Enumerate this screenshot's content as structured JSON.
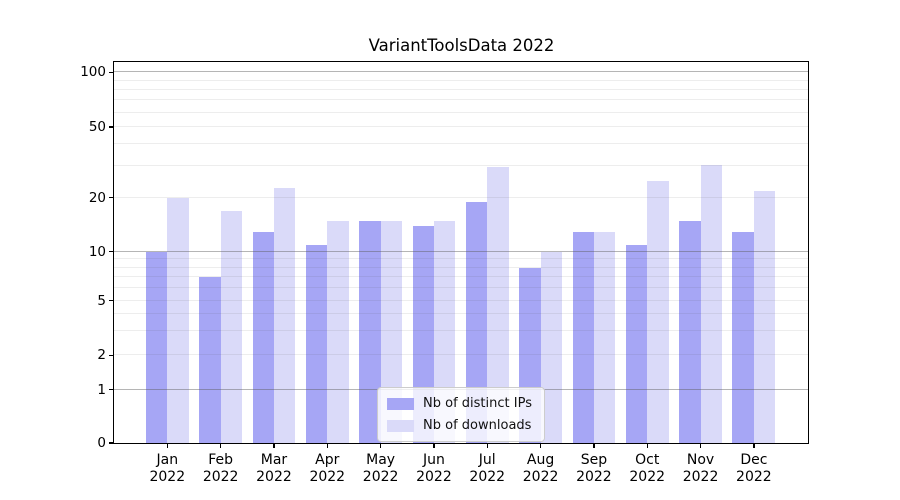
{
  "title": "VariantToolsData 2022",
  "colors": {
    "distinct_ips_bar": "#a6a6f5",
    "downloads_bar": "#dadaf9",
    "major_gridline": "#b0b0b0",
    "minor_gridline": "#ededed",
    "axis_spine": "#000000",
    "background": "#ffffff"
  },
  "legend": {
    "entries": [
      {
        "label": "Nb of distinct IPs",
        "color": "#a6a6f5"
      },
      {
        "label": "Nb of downloads",
        "color": "#dadaf9"
      }
    ]
  },
  "chart_data": {
    "type": "bar",
    "title": "VariantToolsData 2022",
    "xlabel": "",
    "ylabel": "",
    "categories": [
      "Jan 2022",
      "Feb 2022",
      "Mar 2022",
      "Apr 2022",
      "May 2022",
      "Jun 2022",
      "Jul 2022",
      "Aug 2022",
      "Sep 2022",
      "Oct 2022",
      "Nov 2022",
      "Dec 2022"
    ],
    "x_tick_line1": [
      "Jan",
      "Feb",
      "Mar",
      "Apr",
      "May",
      "Jun",
      "Jul",
      "Aug",
      "Sep",
      "Oct",
      "Nov",
      "Dec"
    ],
    "x_tick_line2": [
      "2022",
      "2022",
      "2022",
      "2022",
      "2022",
      "2022",
      "2022",
      "2022",
      "2022",
      "2022",
      "2022",
      "2022"
    ],
    "series": [
      {
        "name": "Nb of distinct IPs",
        "color": "#a6a6f5",
        "values": [
          10,
          7,
          13,
          11,
          15,
          14,
          19,
          8,
          13,
          11,
          15,
          13
        ]
      },
      {
        "name": "Nb of downloads",
        "color": "#dadaf9",
        "values": [
          20,
          17,
          23,
          15,
          15,
          15,
          30,
          10,
          13,
          25,
          31,
          22
        ]
      }
    ],
    "y_axis": {
      "scale": "symlog-like: linear 0-1, logarithmic above 1",
      "ticks": [
        0,
        1,
        2,
        5,
        10,
        20,
        50,
        100
      ],
      "major_gridlines": [
        1,
        10,
        100
      ],
      "minor_gridlines": [
        2,
        3,
        4,
        5,
        6,
        7,
        8,
        9,
        20,
        30,
        40,
        50,
        60,
        70,
        80,
        90
      ],
      "scale_anchors": [
        [
          0,
          0
        ],
        [
          1,
          0.1404
        ],
        [
          2,
          0.23
        ],
        [
          5,
          0.3738
        ],
        [
          10,
          0.5019
        ],
        [
          20,
          0.6437
        ],
        [
          50,
          0.8293
        ],
        [
          100,
          0.9731
        ]
      ],
      "ymax_fraction": 1.0
    },
    "grid": true,
    "legend_position": "lower center"
  }
}
